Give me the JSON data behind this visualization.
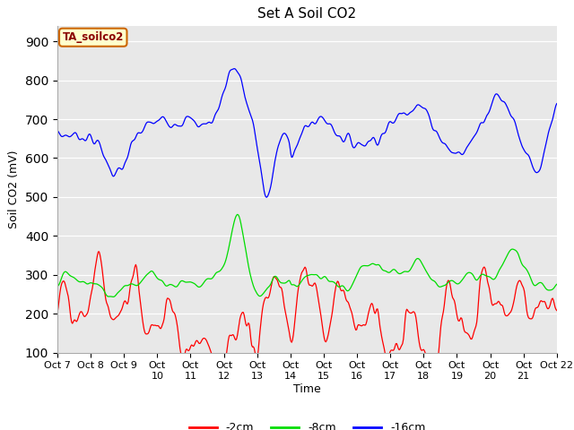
{
  "title": "Set A Soil CO2",
  "ylabel": "Soil CO2 (mV)",
  "xlabel": "Time",
  "annotation": "TA_soilco2",
  "ylim": [
    100,
    940
  ],
  "yticks": [
    100,
    200,
    300,
    400,
    500,
    600,
    700,
    800,
    900
  ],
  "xtick_labels": [
    "Oct 7",
    "Oct 8",
    "Oct 9",
    "Oct 10",
    "Oct 11",
    "Oct 12",
    "Oct 13",
    "Oct 14",
    "Oct 15",
    "Oct 16",
    "Oct 17",
    "Oct 18",
    "Oct 19",
    "Oct 20",
    "Oct 21",
    "Oct 22"
  ],
  "line_colors": [
    "#ff0000",
    "#00dd00",
    "#0000ff"
  ],
  "line_labels": [
    "-2cm",
    "-8cm",
    "-16cm"
  ],
  "bg_color": "#e8e8e8",
  "legend_box_facecolor": "#ffffcc",
  "legend_box_edge": "#cc6600",
  "title_fontsize": 11,
  "axis_fontsize": 9,
  "tick_fontsize": 8
}
